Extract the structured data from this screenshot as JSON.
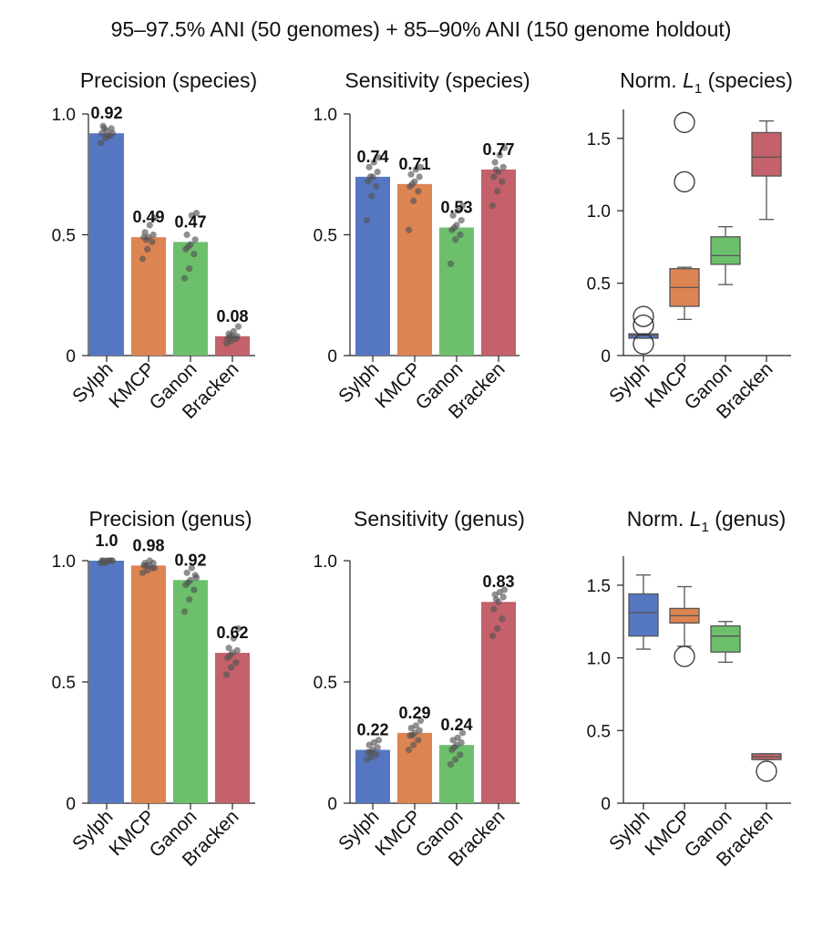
{
  "figure_title": "95–97.5% ANI (50 genomes) + 85–90% ANI (150 genome holdout)",
  "colors": {
    "Sylph": "#5577c2",
    "KMCP": "#dd8453",
    "Ganon": "#6cbf6b",
    "Bracken": "#c4616a",
    "dots": "#555555"
  },
  "chart_data": [
    {
      "id": "precision-species",
      "type": "bar",
      "title": "Precision (species)",
      "categories": [
        "Sylph",
        "KMCP",
        "Ganon",
        "Bracken"
      ],
      "values": [
        0.92,
        0.49,
        0.47,
        0.08
      ],
      "value_labels": [
        "0.92",
        "0.49",
        "0.47",
        "0.08"
      ],
      "ylim": [
        0,
        1.0
      ],
      "yticks": [
        0,
        0.5,
        1.0
      ],
      "ytick_labels": [
        "0",
        "0.5",
        "1.0"
      ],
      "points": [
        [
          0.88,
          0.9,
          0.91,
          0.92,
          0.93,
          0.94,
          0.95,
          0.91,
          0.92,
          0.94
        ],
        [
          0.4,
          0.44,
          0.47,
          0.49,
          0.49,
          0.5,
          0.51,
          0.54,
          0.57,
          0.48
        ],
        [
          0.32,
          0.36,
          0.42,
          0.44,
          0.46,
          0.48,
          0.5,
          0.58,
          0.59,
          0.45
        ],
        [
          0.05,
          0.06,
          0.07,
          0.07,
          0.08,
          0.08,
          0.09,
          0.1,
          0.12,
          0.08
        ]
      ]
    },
    {
      "id": "sensitivity-species",
      "type": "bar",
      "title": "Sensitivity (species)",
      "categories": [
        "Sylph",
        "KMCP",
        "Ganon",
        "Bracken"
      ],
      "values": [
        0.74,
        0.71,
        0.53,
        0.77
      ],
      "value_labels": [
        "0.74",
        "0.71",
        "0.53",
        "0.77"
      ],
      "ylim": [
        0,
        1.0
      ],
      "yticks": [
        0,
        0.5,
        1.0
      ],
      "ytick_labels": [
        "0",
        "0.5",
        "1.0"
      ],
      "points": [
        [
          0.56,
          0.66,
          0.7,
          0.72,
          0.74,
          0.76,
          0.78,
          0.8,
          0.82,
          0.74
        ],
        [
          0.52,
          0.64,
          0.68,
          0.7,
          0.72,
          0.74,
          0.75,
          0.77,
          0.78,
          0.71
        ],
        [
          0.38,
          0.48,
          0.5,
          0.52,
          0.54,
          0.56,
          0.58,
          0.6,
          0.62,
          0.53
        ],
        [
          0.62,
          0.68,
          0.72,
          0.74,
          0.76,
          0.78,
          0.8,
          0.83,
          0.86,
          0.77
        ]
      ]
    },
    {
      "id": "norm-l1-species",
      "type": "box",
      "title_prefix": "Norm. ",
      "title_var": "L",
      "title_sub": "1",
      "title_suffix": " (species)",
      "categories": [
        "Sylph",
        "KMCP",
        "Ganon",
        "Bracken"
      ],
      "ylim": [
        0,
        1.7
      ],
      "yticks": [
        0,
        0.5,
        1.0,
        1.5
      ],
      "ytick_labels": [
        "0",
        "0.5",
        "1.0",
        "1.5"
      ],
      "boxes": [
        {
          "whislo": 0.12,
          "q1": 0.12,
          "med": 0.14,
          "q3": 0.15,
          "whishi": 0.15,
          "fliers": [
            0.08,
            0.21,
            0.27
          ]
        },
        {
          "whislo": 0.25,
          "q1": 0.34,
          "med": 0.47,
          "q3": 0.6,
          "whishi": 0.61,
          "fliers": [
            1.2,
            1.61
          ]
        },
        {
          "whislo": 0.49,
          "q1": 0.63,
          "med": 0.69,
          "q3": 0.82,
          "whishi": 0.89,
          "fliers": []
        },
        {
          "whislo": 0.94,
          "q1": 1.24,
          "med": 1.37,
          "q3": 1.54,
          "whishi": 1.62,
          "fliers": []
        }
      ]
    },
    {
      "id": "precision-genus",
      "type": "bar",
      "title": "Precision (genus)",
      "categories": [
        "Sylph",
        "KMCP",
        "Ganon",
        "Bracken"
      ],
      "values": [
        1.0,
        0.98,
        0.92,
        0.62
      ],
      "value_labels": [
        "1.0",
        "0.98",
        "0.92",
        "0.62"
      ],
      "ylim": [
        0,
        1.0
      ],
      "yticks": [
        0,
        0.5,
        1.0
      ],
      "ytick_labels": [
        "0",
        "0.5",
        "1.0"
      ],
      "points": [
        [
          0.99,
          0.99,
          1.0,
          1.0,
          1.0,
          1.0,
          1.0,
          1.0,
          1.0,
          0.995
        ],
        [
          0.95,
          0.96,
          0.97,
          0.98,
          0.98,
          0.99,
          0.99,
          1.0,
          0.97,
          0.98
        ],
        [
          0.79,
          0.84,
          0.88,
          0.9,
          0.92,
          0.94,
          0.95,
          0.97,
          0.93,
          0.91
        ],
        [
          0.53,
          0.56,
          0.58,
          0.6,
          0.62,
          0.63,
          0.64,
          0.68,
          0.72,
          0.61
        ]
      ]
    },
    {
      "id": "sensitivity-genus",
      "type": "bar",
      "title": "Sensitivity (genus)",
      "categories": [
        "Sylph",
        "KMCP",
        "Ganon",
        "Bracken"
      ],
      "values": [
        0.22,
        0.29,
        0.24,
        0.83
      ],
      "value_labels": [
        "0.22",
        "0.29",
        "0.24",
        "0.83"
      ],
      "ylim": [
        0,
        1.0
      ],
      "yticks": [
        0,
        0.5,
        1.0
      ],
      "ytick_labels": [
        "0",
        "0.5",
        "1.0"
      ],
      "points": [
        [
          0.18,
          0.19,
          0.2,
          0.21,
          0.22,
          0.23,
          0.24,
          0.25,
          0.26,
          0.21
        ],
        [
          0.22,
          0.24,
          0.26,
          0.28,
          0.29,
          0.3,
          0.31,
          0.32,
          0.34,
          0.28
        ],
        [
          0.16,
          0.18,
          0.2,
          0.22,
          0.24,
          0.25,
          0.26,
          0.27,
          0.29,
          0.23
        ],
        [
          0.69,
          0.72,
          0.76,
          0.8,
          0.83,
          0.85,
          0.86,
          0.87,
          0.88,
          0.84
        ]
      ]
    },
    {
      "id": "norm-l1-genus",
      "type": "box",
      "title_prefix": "Norm. ",
      "title_var": "L",
      "title_sub": "1",
      "title_suffix": " (genus)",
      "categories": [
        "Sylph",
        "KMCP",
        "Ganon",
        "Bracken"
      ],
      "ylim": [
        0,
        1.7
      ],
      "yticks": [
        0,
        0.5,
        1.0,
        1.5
      ],
      "ytick_labels": [
        "0",
        "0.5",
        "1.0",
        "1.5"
      ],
      "boxes": [
        {
          "whislo": 1.06,
          "q1": 1.15,
          "med": 1.31,
          "q3": 1.44,
          "whishi": 1.57,
          "fliers": []
        },
        {
          "whislo": 1.08,
          "q1": 1.24,
          "med": 1.29,
          "q3": 1.34,
          "whishi": 1.49,
          "fliers": [
            1.01
          ]
        },
        {
          "whislo": 0.97,
          "q1": 1.04,
          "med": 1.15,
          "q3": 1.22,
          "whishi": 1.25,
          "fliers": []
        },
        {
          "whislo": 0.3,
          "q1": 0.3,
          "med": 0.32,
          "q3": 0.34,
          "whishi": 0.34,
          "fliers": [
            0.22
          ]
        }
      ]
    }
  ]
}
